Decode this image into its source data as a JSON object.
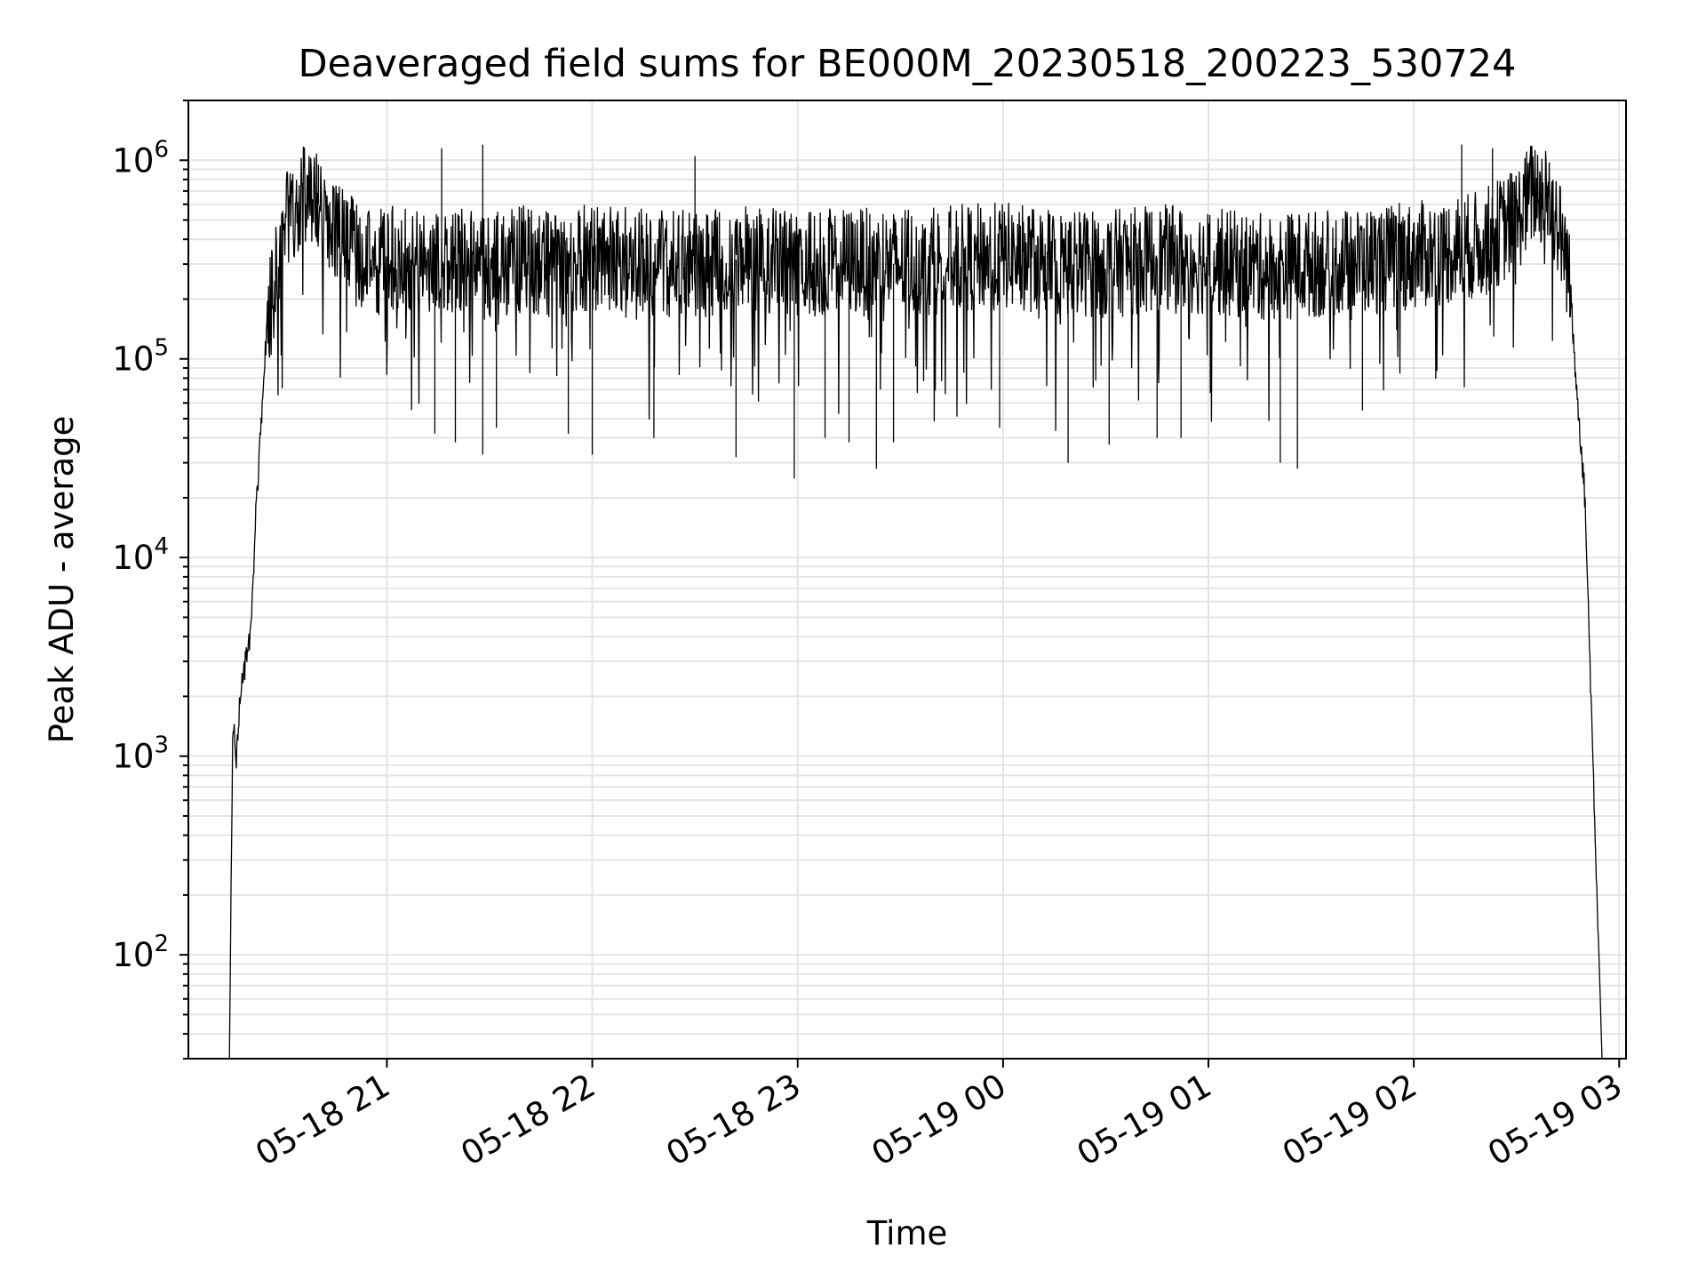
{
  "chart_data": {
    "type": "line",
    "title": "Deaveraged field sums for BE000M_20230518_200223_530724",
    "xlabel": "Time",
    "ylabel": "Peak ADU - average",
    "x_scale": "time",
    "y_scale": "log",
    "xlim": [
      "2023-05-18 20:02",
      "2023-05-19 03:02"
    ],
    "ylim": [
      30,
      2000000
    ],
    "x_ticks": [
      {
        "value": "2023-05-18 21:00",
        "label": "05-18 21"
      },
      {
        "value": "2023-05-18 22:00",
        "label": "05-18 22"
      },
      {
        "value": "2023-05-18 23:00",
        "label": "05-18 23"
      },
      {
        "value": "2023-05-19 00:00",
        "label": "05-19 00"
      },
      {
        "value": "2023-05-19 01:00",
        "label": "05-19 01"
      },
      {
        "value": "2023-05-19 02:00",
        "label": "05-19 02"
      },
      {
        "value": "2023-05-19 03:00",
        "label": "05-19 03"
      }
    ],
    "y_ticks": [
      {
        "value": 100,
        "base": "10",
        "exp": "2"
      },
      {
        "value": 1000,
        "base": "10",
        "exp": "3"
      },
      {
        "value": 10000,
        "base": "10",
        "exp": "4"
      },
      {
        "value": 100000,
        "base": "10",
        "exp": "5"
      },
      {
        "value": 1000000,
        "base": "10",
        "exp": "6"
      }
    ],
    "grid": true,
    "grid_minor": true,
    "series": [
      {
        "color": "#000000",
        "x": [
          "2023-05-18 20:14",
          "2023-05-18 20:15",
          "2023-05-18 20:16",
          "2023-05-18 20:17",
          "2023-05-18 20:18",
          "2023-05-18 20:20",
          "2023-05-18 20:22",
          "2023-05-18 20:25",
          "2023-05-18 20:28",
          "2023-05-18 20:31",
          "2023-05-18 20:34",
          "2023-05-18 20:37",
          "2023-05-18 20:40",
          "2023-05-18 20:45",
          "2023-05-18 20:50",
          "2023-05-18 20:55",
          "2023-05-18 21:00",
          "2023-05-18 21:10",
          "2023-05-18 21:20",
          "2023-05-18 21:30",
          "2023-05-18 21:40",
          "2023-05-18 21:50",
          "2023-05-18 22:00",
          "2023-05-18 22:15",
          "2023-05-18 22:30",
          "2023-05-18 22:45",
          "2023-05-18 23:00",
          "2023-05-18 23:15",
          "2023-05-18 23:30",
          "2023-05-18 23:45",
          "2023-05-19 00:00",
          "2023-05-19 00:15",
          "2023-05-19 00:30",
          "2023-05-19 00:45",
          "2023-05-19 01:00",
          "2023-05-19 01:15",
          "2023-05-19 01:30",
          "2023-05-19 01:45",
          "2023-05-19 02:00",
          "2023-05-19 02:10",
          "2023-05-19 02:20",
          "2023-05-19 02:30",
          "2023-05-19 02:35",
          "2023-05-19 02:40",
          "2023-05-19 02:45",
          "2023-05-19 02:50",
          "2023-05-19 02:55"
        ],
        "y": [
          30,
          1500,
          1000,
          1800,
          2500,
          4000,
          20000,
          150000,
          300000,
          500000,
          650000,
          700000,
          600000,
          450000,
          350000,
          300000,
          320000,
          300000,
          310000,
          290000,
          320000,
          300000,
          330000,
          310000,
          300000,
          320000,
          300000,
          310000,
          300000,
          320000,
          330000,
          310000,
          300000,
          320000,
          310000,
          290000,
          300000,
          310000,
          330000,
          350000,
          380000,
          500000,
          700000,
          650000,
          300000,
          20000,
          30
        ]
      }
    ],
    "noise_spikes": [
      {
        "x": "2023-05-18 21:14",
        "y": 42000
      },
      {
        "x": "2023-05-18 21:20",
        "y": 38000
      },
      {
        "x": "2023-05-18 21:28",
        "y": 33000
      },
      {
        "x": "2023-05-18 21:32",
        "y": 45000
      },
      {
        "x": "2023-05-18 21:53",
        "y": 42000
      },
      {
        "x": "2023-05-18 22:00",
        "y": 33000
      },
      {
        "x": "2023-05-18 22:18",
        "y": 40000
      },
      {
        "x": "2023-05-18 22:42",
        "y": 32000
      },
      {
        "x": "2023-05-18 22:59",
        "y": 25000
      },
      {
        "x": "2023-05-18 23:08",
        "y": 40000
      },
      {
        "x": "2023-05-18 23:15",
        "y": 38000
      },
      {
        "x": "2023-05-18 23:23",
        "y": 28000
      },
      {
        "x": "2023-05-18 23:28",
        "y": 38000
      },
      {
        "x": "2023-05-18 23:59",
        "y": 45000
      },
      {
        "x": "2023-05-19 00:19",
        "y": 30000
      },
      {
        "x": "2023-05-19 00:31",
        "y": 37000
      },
      {
        "x": "2023-05-19 00:45",
        "y": 40000
      },
      {
        "x": "2023-05-19 00:52",
        "y": 40000
      },
      {
        "x": "2023-05-19 01:21",
        "y": 30000
      },
      {
        "x": "2023-05-19 01:26",
        "y": 28000
      },
      {
        "x": "2023-05-19 01:45",
        "y": 55000
      },
      {
        "x": "2023-05-18 21:28",
        "y": 1200000
      },
      {
        "x": "2023-05-18 22:30",
        "y": 1050000
      },
      {
        "x": "2023-05-19 02:14",
        "y": 1200000
      },
      {
        "x": "2023-05-19 02:23",
        "y": 1150000
      },
      {
        "x": "2023-05-18 21:16",
        "y": 1150000
      },
      {
        "x": "2023-05-18 20:40",
        "y": 950000
      }
    ]
  }
}
